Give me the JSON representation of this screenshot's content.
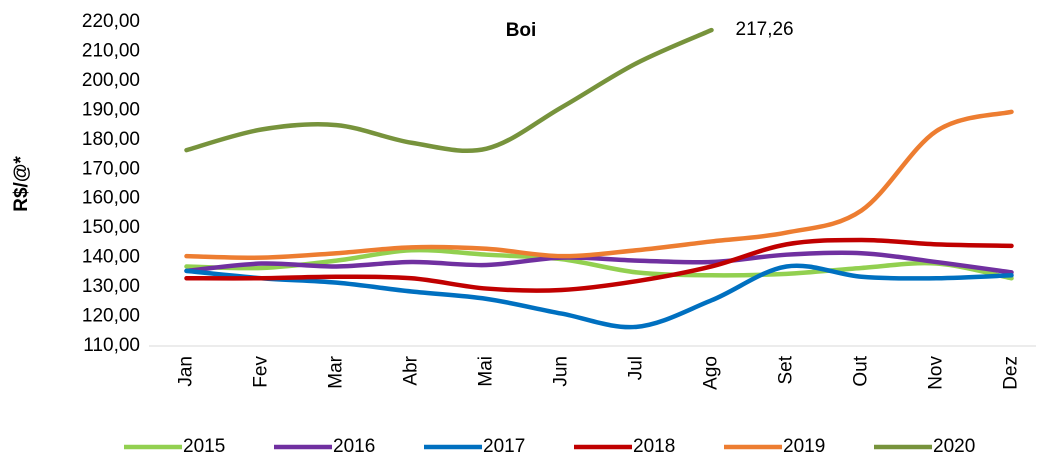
{
  "chart_data": {
    "type": "line",
    "title": "Boi",
    "y_label": "R$/@*",
    "categories": [
      "Jan",
      "Fev",
      "Mar",
      "Abr",
      "Mai",
      "Jun",
      "Jul",
      "Ago",
      "Set",
      "Out",
      "Nov",
      "Dez"
    ],
    "series": [
      {
        "name": "2015",
        "color": "#92d050",
        "values": [
          137,
          136.5,
          139,
          142.5,
          141,
          139.5,
          135,
          134,
          134.5,
          136.5,
          138,
          133
        ]
      },
      {
        "name": "2016",
        "color": "#7030a0",
        "values": [
          135.5,
          138,
          137,
          138.5,
          137.5,
          140,
          139,
          138.5,
          141,
          141.5,
          138.5,
          135
        ]
      },
      {
        "name": "2017",
        "color": "#0070c0",
        "values": [
          135.5,
          133,
          131.5,
          128.5,
          126,
          121,
          116.5,
          125.5,
          137,
          133.5,
          133,
          134
        ]
      },
      {
        "name": "2018",
        "color": "#c00000",
        "values": [
          133,
          133,
          133.5,
          133,
          129.5,
          129,
          132,
          137,
          144.5,
          146,
          144.5,
          144
        ]
      },
      {
        "name": "2019",
        "color": "#ed7d31",
        "values": [
          140.5,
          140,
          141.5,
          143.5,
          143,
          140.5,
          142.5,
          145.5,
          148.5,
          156,
          183,
          189.5
        ]
      },
      {
        "name": "2020",
        "color": "#77933c",
        "values": [
          176.5,
          183.5,
          185,
          179,
          177,
          191,
          206,
          217.26,
          null,
          null,
          null,
          null
        ],
        "value_labels": [
          null,
          null,
          null,
          null,
          null,
          null,
          null,
          "217,26",
          null,
          null,
          null,
          null
        ]
      }
    ],
    "ylim": [
      110,
      220
    ],
    "yticks": [
      {
        "value": 110,
        "label": "110,00"
      },
      {
        "value": 120,
        "label": "120,00"
      },
      {
        "value": 130,
        "label": "130,00"
      },
      {
        "value": 140,
        "label": "140,00"
      },
      {
        "value": 150,
        "label": "150,00"
      },
      {
        "value": 160,
        "label": "160,00"
      },
      {
        "value": 170,
        "label": "170,00"
      },
      {
        "value": 180,
        "label": "180,00"
      },
      {
        "value": 190,
        "label": "190,00"
      },
      {
        "value": 200,
        "label": "200,00"
      },
      {
        "value": 210,
        "label": "210,00"
      },
      {
        "value": 220,
        "label": "220,00"
      }
    ],
    "grid": false,
    "legend": "bottom"
  }
}
